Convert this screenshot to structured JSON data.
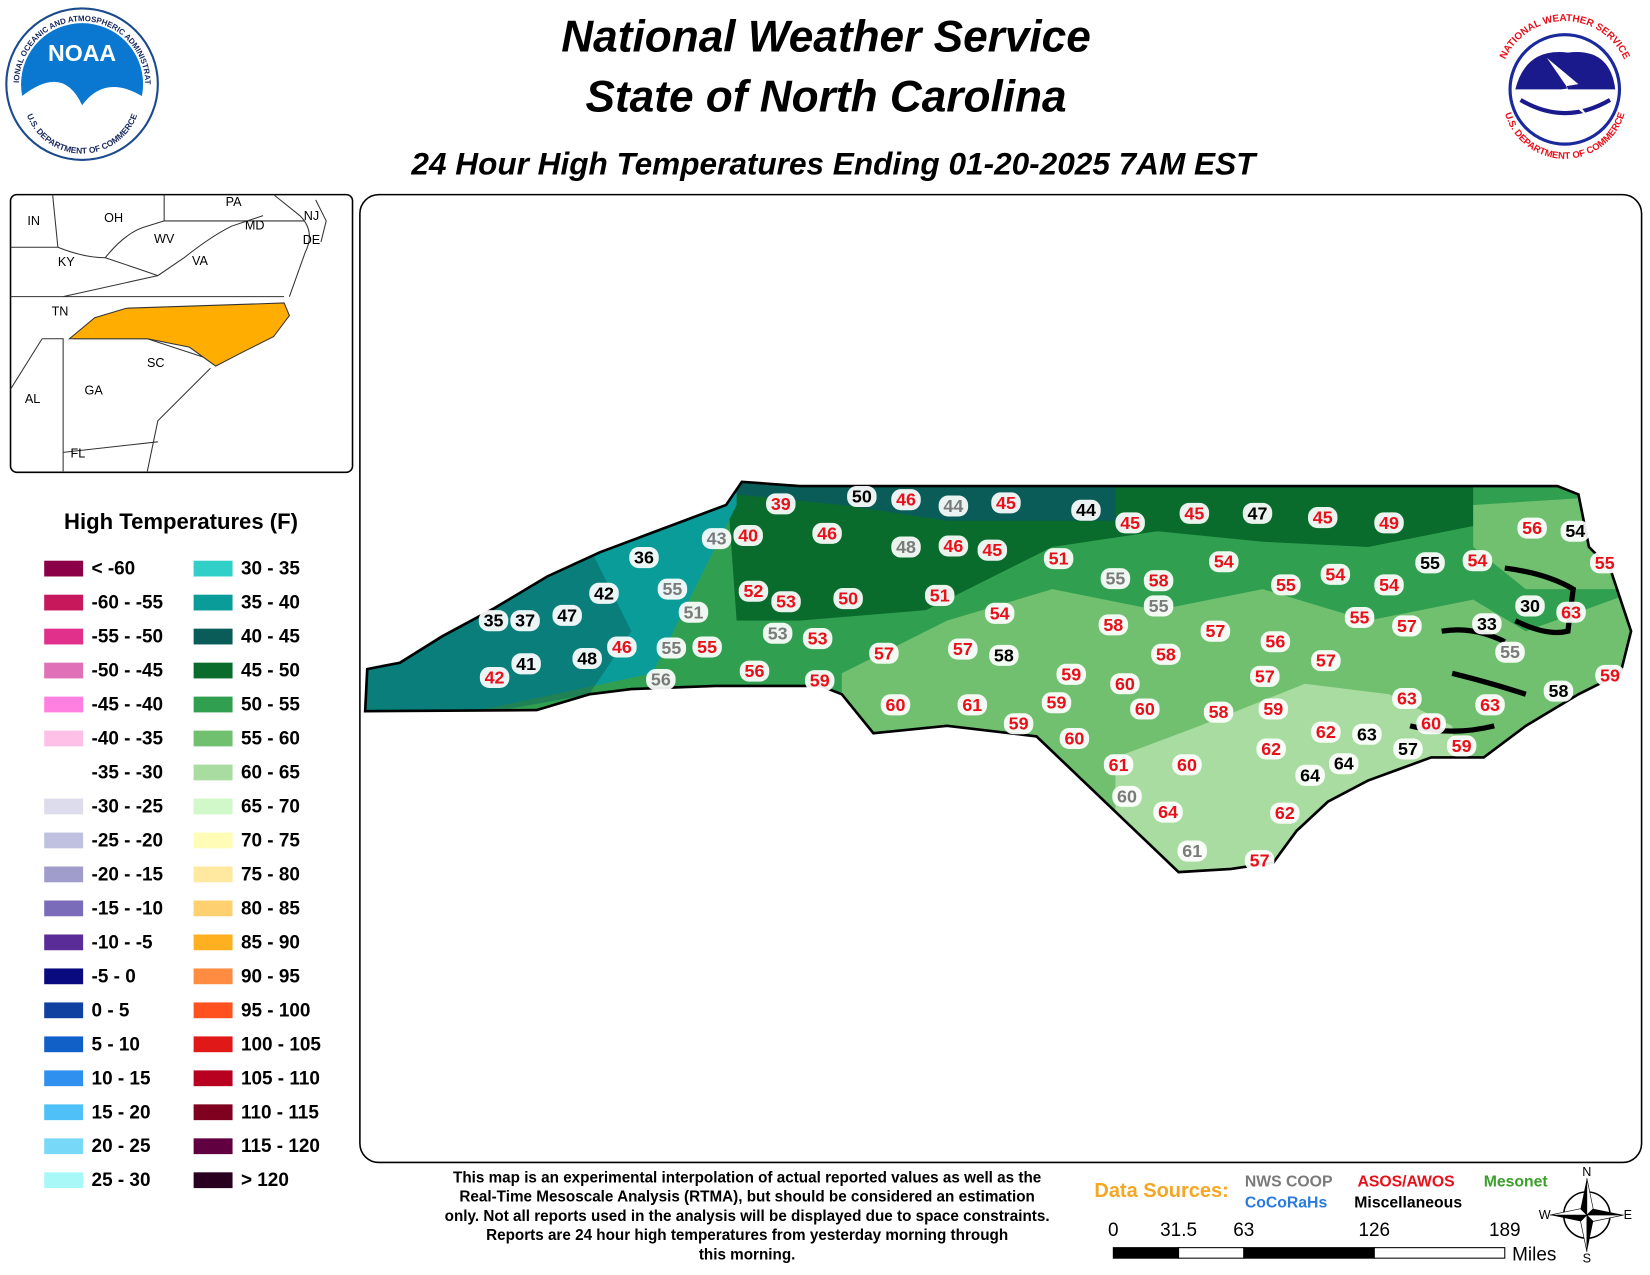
{
  "header": {
    "title": "National Weather Service",
    "subtitle": "State of North Carolina",
    "map_title": "24 Hour High Temperatures Ending 01-20-2025 7AM EST"
  },
  "logos": {
    "noaa": {
      "name": "NOAA",
      "ring_top": "NATIONAL OCEANIC AND ATMOSPHERIC ADMINISTRATION",
      "ring_bottom": "U.S. DEPARTMENT OF COMMERCE"
    },
    "nws": {
      "ring_top": "NATIONAL WEATHER SERVICE",
      "ring_bottom": "U.S. DEPARTMENT OF COMMERCE"
    }
  },
  "inset_map": {
    "labels": [
      "IN",
      "OH",
      "PA",
      "NJ",
      "MD",
      "DE",
      "WV",
      "KY",
      "VA",
      "TN",
      "SC",
      "GA",
      "AL",
      "FL"
    ],
    "highlight_color": "#ffad00"
  },
  "legend": {
    "title": "High Temperatures (F)",
    "items": [
      {
        "label": "< -60",
        "color": "#8c0048"
      },
      {
        "label": "-60 - -55",
        "color": "#c8185c"
      },
      {
        "label": "-55 - -50",
        "color": "#e0308c"
      },
      {
        "label": "-50 - -45",
        "color": "#e070b8"
      },
      {
        "label": "-45 - -40",
        "color": "#ff80e0"
      },
      {
        "label": "-40 - -35",
        "color": "#ffc0e8"
      },
      {
        "label": "-35 - -30",
        "color": "#ffffff"
      },
      {
        "label": "-30 - -25",
        "color": "#dcdcec"
      },
      {
        "label": "-25 - -20",
        "color": "#c0c0e0"
      },
      {
        "label": "-20 - -15",
        "color": "#a09ccc"
      },
      {
        "label": "-15 - -10",
        "color": "#7a6cb8"
      },
      {
        "label": "-10 - -5",
        "color": "#5a2c98"
      },
      {
        "label": "-5 - 0",
        "color": "#0a0a80"
      },
      {
        "label": "0 - 5",
        "color": "#1040a0"
      },
      {
        "label": "5 - 10",
        "color": "#1060c8"
      },
      {
        "label": "10 - 15",
        "color": "#3090f0"
      },
      {
        "label": "15 - 20",
        "color": "#50c0f8"
      },
      {
        "label": "20 - 25",
        "color": "#78d8f8"
      },
      {
        "label": "25 - 30",
        "color": "#a8f8f8"
      },
      {
        "label": "30 - 35",
        "color": "#30d0c8"
      },
      {
        "label": "35 - 40",
        "color": "#0a9c98"
      },
      {
        "label": "40 - 45",
        "color": "#0a5c58"
      },
      {
        "label": "45 - 50",
        "color": "#0a6c2c"
      },
      {
        "label": "50 - 55",
        "color": "#30a050"
      },
      {
        "label": "55 - 60",
        "color": "#70c070"
      },
      {
        "label": "60 - 65",
        "color": "#a8dca0"
      },
      {
        "label": "65 - 70",
        "color": "#d0f8c8"
      },
      {
        "label": "70 - 75",
        "color": "#fffcb8"
      },
      {
        "label": "75 - 80",
        "color": "#ffe8a0"
      },
      {
        "label": "80 - 85",
        "color": "#ffd070"
      },
      {
        "label": "85 - 90",
        "color": "#ffb020"
      },
      {
        "label": "90 - 95",
        "color": "#ff8c40"
      },
      {
        "label": "95 - 100",
        "color": "#ff5020"
      },
      {
        "label": "100 - 105",
        "color": "#e01818"
      },
      {
        "label": "105 - 110",
        "color": "#b80020"
      },
      {
        "label": "110 - 115",
        "color": "#800020"
      },
      {
        "label": "115 - 120",
        "color": "#600040"
      },
      {
        "label": "> 120",
        "color": "#280020"
      }
    ]
  },
  "data_sources": {
    "title": "Data Sources:",
    "title_color": "#f5a623",
    "sources": [
      {
        "name": "NWS COOP",
        "color": "#7a7a7a",
        "stations": [
          44,
          43,
          48,
          55,
          55,
          55,
          51,
          55,
          53,
          55,
          56,
          60,
          61
        ]
      },
      {
        "name": "ASOS/AWOS",
        "color": "#e8101a",
        "stations": [
          39,
          46,
          45,
          45,
          45,
          45,
          49,
          56,
          55,
          40,
          46,
          46,
          45,
          51,
          58,
          54,
          55,
          54,
          54,
          54,
          52,
          53,
          50,
          51,
          54,
          55,
          57,
          63,
          58,
          57,
          56,
          53,
          55,
          46,
          57,
          57,
          58,
          57,
          57,
          42,
          56,
          59,
          59,
          60,
          59,
          63,
          63,
          60,
          61,
          59,
          60,
          58,
          59,
          59,
          60,
          60,
          62,
          62,
          59,
          61,
          60,
          64,
          62,
          57
        ]
      },
      {
        "name": "Mesonet",
        "color": "#3aa02a"
      },
      {
        "name": "CoCoRaHs",
        "color": "#2a7ae0"
      },
      {
        "name": "Miscellaneous",
        "color": "#000000",
        "stations": [
          50,
          44,
          47,
          54,
          36,
          55,
          42,
          33,
          30,
          35,
          37,
          47,
          48,
          58,
          41,
          58,
          63,
          57,
          64,
          64
        ]
      }
    ]
  },
  "disclaimer": [
    "This map is an experimental interpolation of actual reported values as well as the",
    "Real-Time Mesoscale Analysis (RTMA), but should be considered an estimation",
    "only. Not all reports used in the analysis will be displayed due to space constraints.",
    "Reports are 24 hour high temperatures from yesterday morning through",
    "this morning."
  ],
  "scale": {
    "ticks": [
      0,
      31.5,
      63,
      126,
      189
    ],
    "unit": "Miles"
  },
  "compass": [
    "N",
    "E",
    "S",
    "W"
  ]
}
